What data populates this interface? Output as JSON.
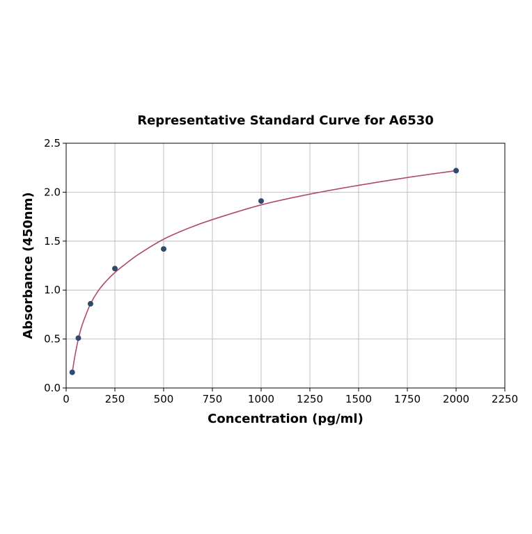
{
  "chart_data": {
    "type": "scatter",
    "title": "Representative Standard Curve for A6530",
    "xlabel": "Concentration (pg/ml)",
    "ylabel": "Absorbance (450nm)",
    "xlim": [
      0,
      2250
    ],
    "ylim": [
      0,
      2.5
    ],
    "xticks": [
      0,
      250,
      500,
      750,
      1000,
      1250,
      1500,
      1750,
      2000,
      2250
    ],
    "yticks": [
      "0.0",
      "0.5",
      "1.0",
      "1.5",
      "2.0",
      "2.5"
    ],
    "grid": true,
    "points": {
      "x": [
        31.25,
        62.5,
        125,
        250,
        500,
        1000,
        2000
      ],
      "y": [
        0.16,
        0.51,
        0.86,
        1.22,
        1.42,
        1.91,
        2.22
      ],
      "color": "#2e4a6e"
    },
    "fit_curve": {
      "x": [
        31,
        40,
        50,
        62.5,
        80,
        100,
        125,
        160,
        200,
        250,
        300,
        375,
        500,
        625,
        750,
        1000,
        1250,
        1500,
        1750,
        2000
      ],
      "y": [
        0.15,
        0.27,
        0.38,
        0.5,
        0.63,
        0.74,
        0.86,
        0.98,
        1.08,
        1.18,
        1.26,
        1.37,
        1.52,
        1.63,
        1.72,
        1.87,
        1.98,
        2.07,
        2.15,
        2.22
      ],
      "color": "#b04a6a"
    }
  }
}
